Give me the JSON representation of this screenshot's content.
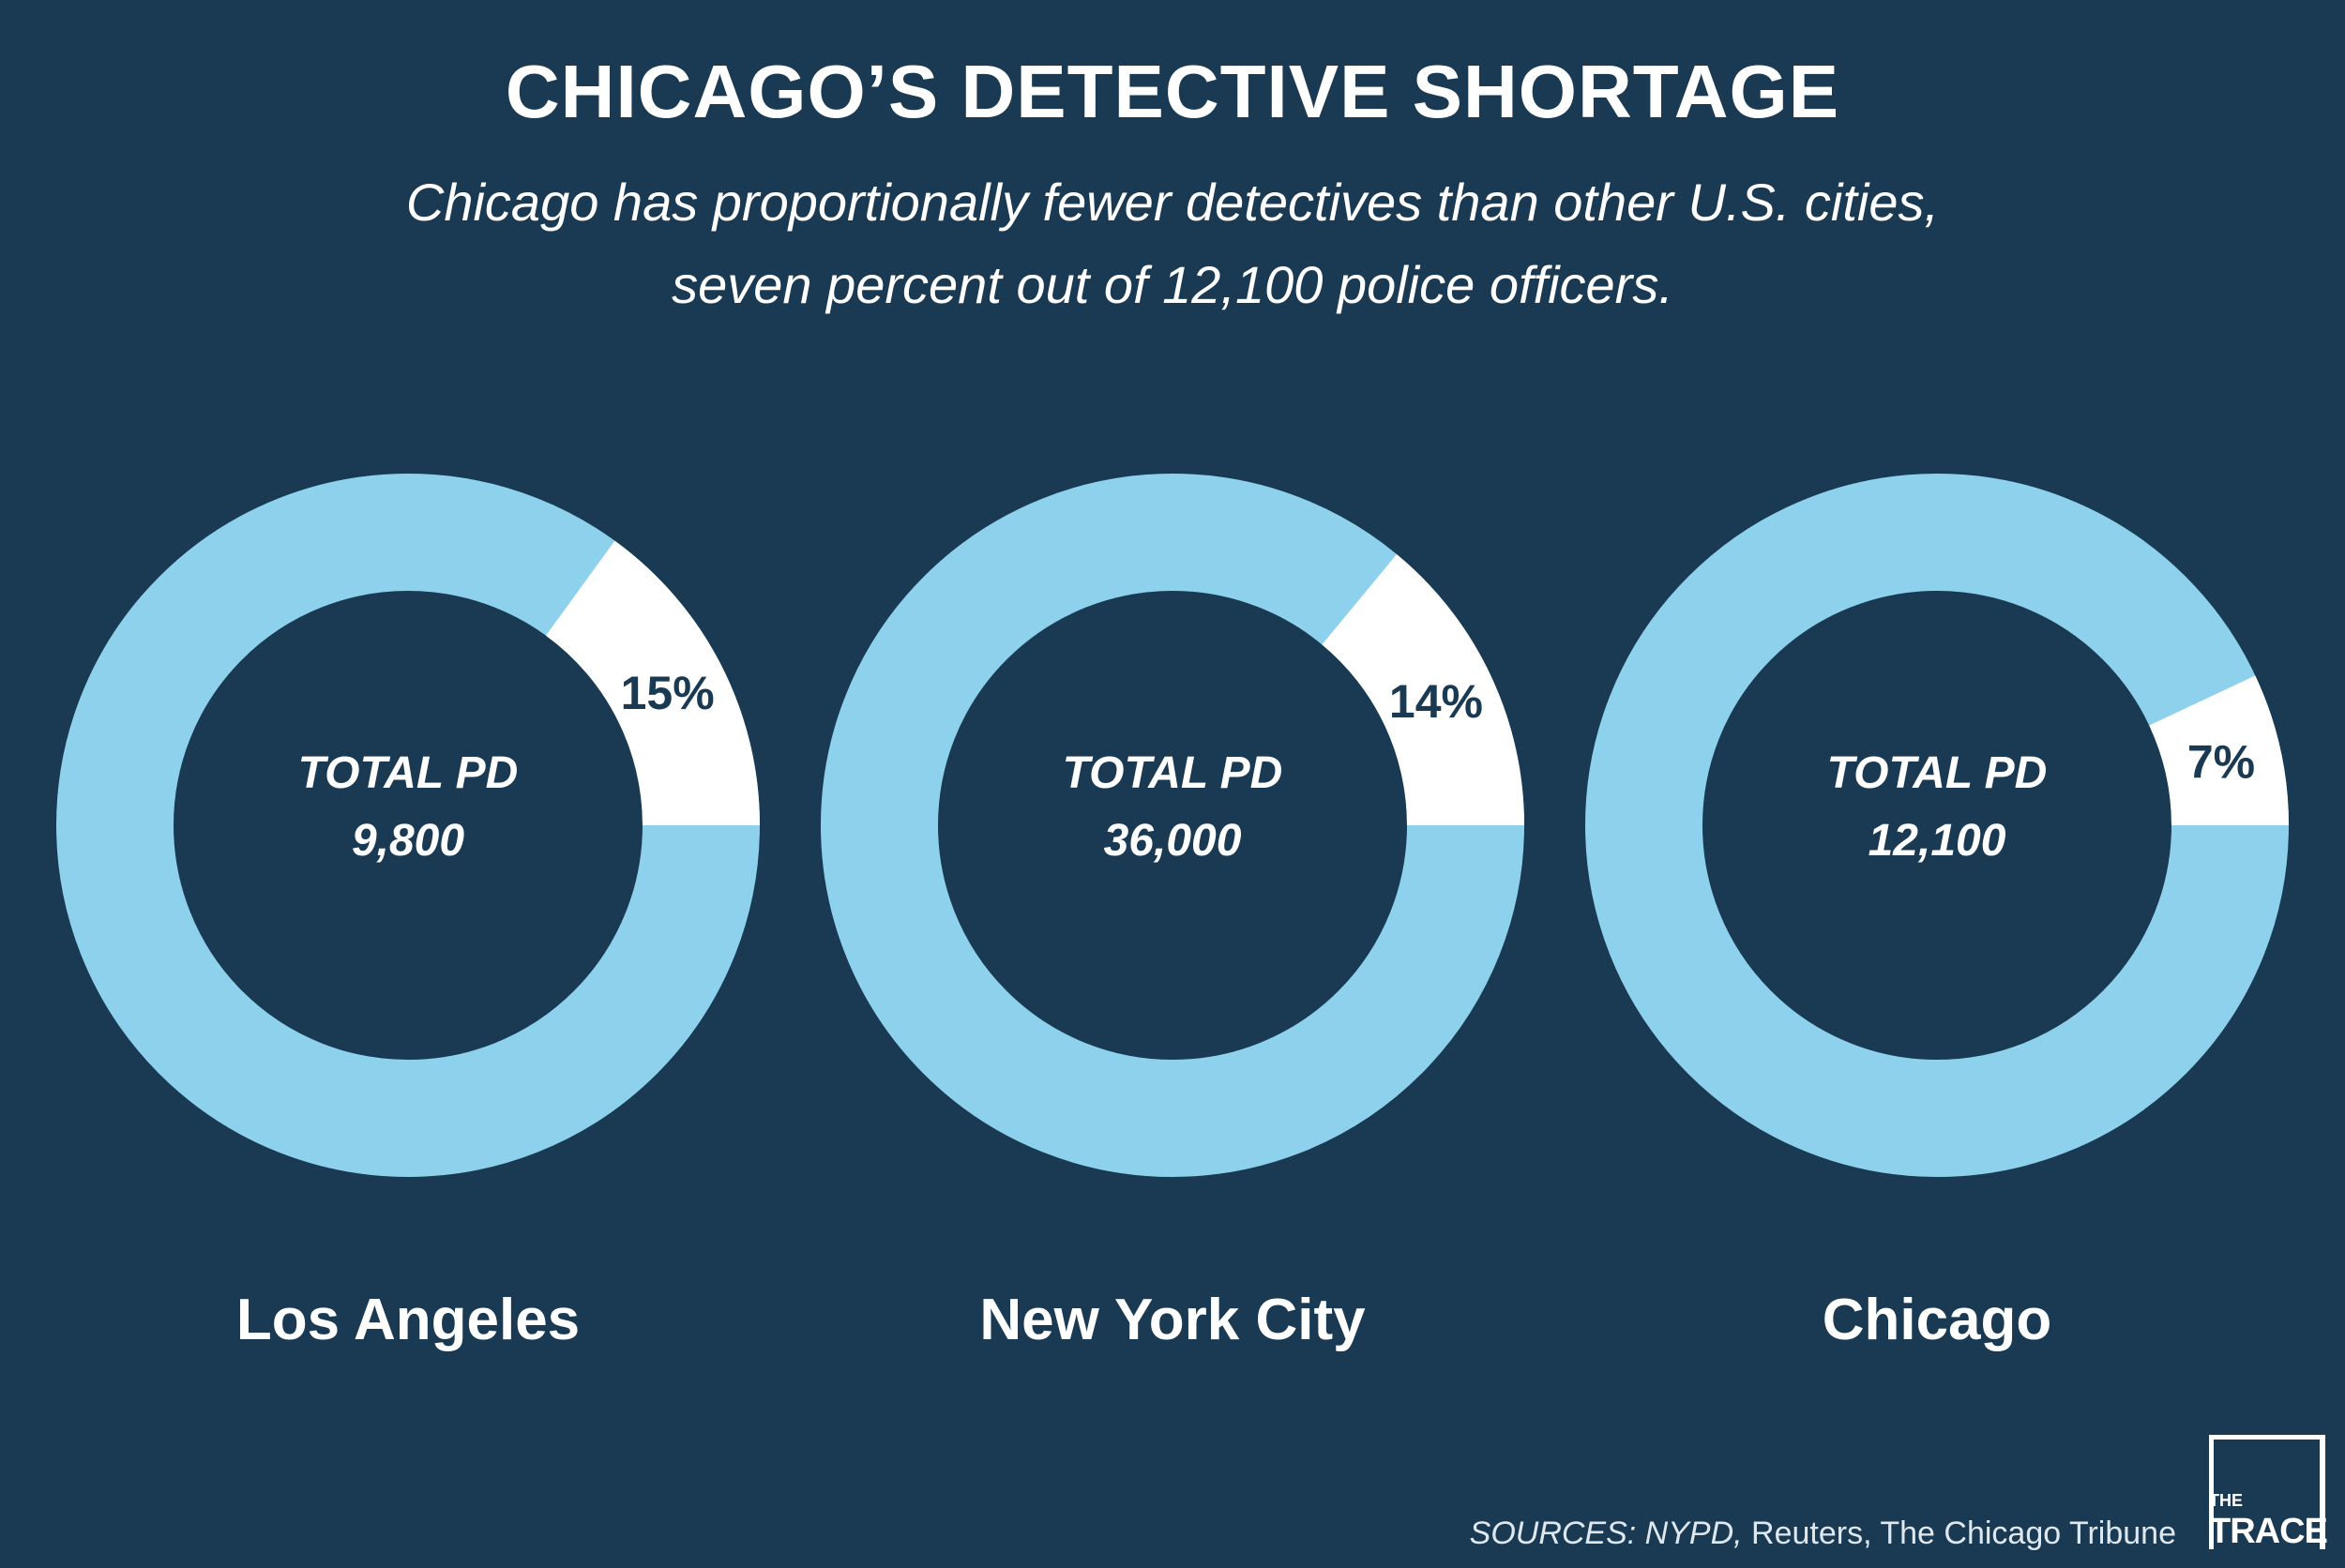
{
  "header": {
    "title": "CHICAGO’S DETECTIVE SHORTAGE",
    "subtitle_line1": "Chicago has proportionally fewer detectives than other U.S. cities,",
    "subtitle_line2": "seven percent out of 12,100 police officers."
  },
  "chart_data": {
    "type": "pie",
    "title": "CHICAGO’S DETECTIVE SHORTAGE",
    "colors": {
      "remainder": "#8ed1ec",
      "detectives": "#ffffff",
      "background": "#193a52",
      "label": "#193a52"
    },
    "charts": [
      {
        "city": "Los Angeles",
        "center_label": "TOTAL PD",
        "total": "9,800",
        "detective_share": 15,
        "share_label": "15%"
      },
      {
        "city": "New York City",
        "center_label": "TOTAL PD",
        "total": "36,000",
        "detective_share": 14,
        "share_label": "14%"
      },
      {
        "city": "Chicago",
        "center_label": "TOTAL PD",
        "total": "12,100",
        "detective_share": 7,
        "share_label": "7%"
      }
    ]
  },
  "footer": {
    "source_prefix": "SOURCES: NYPD,",
    "source_rest": " Reuters, The Chicago Tribune",
    "logo_top": "THE",
    "logo_bottom": "TRACE"
  }
}
